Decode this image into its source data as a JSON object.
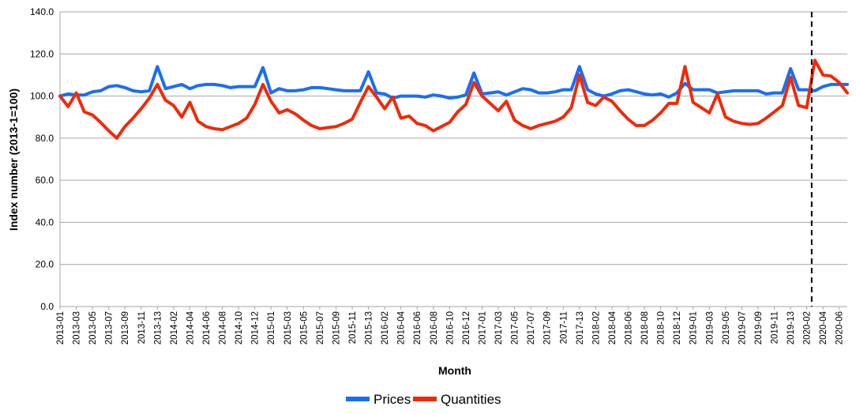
{
  "chart_data": {
    "type": "line",
    "xlabel": "Month",
    "ylabel": "Index number (2013-1=100)",
    "ylim": [
      0,
      140
    ],
    "yticks": [
      "0.0",
      "20.0",
      "40.0",
      "60.0",
      "80.0",
      "100.0",
      "120.0",
      "140.0"
    ],
    "grid": "horizontal",
    "legend_position": "bottom",
    "x": [
      "2013-01",
      "2013-02",
      "2013-03",
      "2013-04",
      "2013-05",
      "2013-06",
      "2013-07",
      "2013-08",
      "2013-09",
      "2013-10",
      "2013-11",
      "2013-12",
      "2013-13",
      "2014-01",
      "2014-02",
      "2014-03",
      "2014-04",
      "2014-05",
      "2014-06",
      "2014-07",
      "2014-08",
      "2014-09",
      "2014-10",
      "2014-11",
      "2014-12",
      "2014-13",
      "2015-01",
      "2015-02",
      "2015-03",
      "2015-04",
      "2015-05",
      "2015-06",
      "2015-07",
      "2015-08",
      "2015-09",
      "2015-10",
      "2015-11",
      "2015-12",
      "2015-13",
      "2016-01",
      "2016-02",
      "2016-03",
      "2016-04",
      "2016-05",
      "2016-06",
      "2016-07",
      "2016-08",
      "2016-09",
      "2016-10",
      "2016-11",
      "2016-12",
      "2016-13",
      "2017-01",
      "2017-02",
      "2017-03",
      "2017-04",
      "2017-05",
      "2017-06",
      "2017-07",
      "2017-08",
      "2017-09",
      "2017-10",
      "2017-11",
      "2017-12",
      "2017-13",
      "2018-01",
      "2018-02",
      "2018-03",
      "2018-04",
      "2018-05",
      "2018-06",
      "2018-07",
      "2018-08",
      "2018-09",
      "2018-10",
      "2018-11",
      "2018-12",
      "2018-13",
      "2019-01",
      "2019-02",
      "2019-03",
      "2019-04",
      "2019-05",
      "2019-06",
      "2019-07",
      "2019-08",
      "2019-09",
      "2019-10",
      "2019-11",
      "2019-12",
      "2019-13",
      "2020-01",
      "2020-02",
      "2020-03",
      "2020-04",
      "2020-05",
      "2020-06",
      "2020-07"
    ],
    "xtick_labels": [
      "2013-01",
      "2013-03",
      "2013-05",
      "2013-07",
      "2013-09",
      "2013-11",
      "2013-13",
      "2014-02",
      "2014-04",
      "2014-06",
      "2014-08",
      "2014-10",
      "2014-12",
      "2015-01",
      "2015-03",
      "2015-05",
      "2015-07",
      "2015-09",
      "2015-11",
      "2015-13",
      "2016-02",
      "2016-04",
      "2016-06",
      "2016-08",
      "2016-10",
      "2016-12",
      "2017-01",
      "2017-03",
      "2017-05",
      "2017-07",
      "2017-09",
      "2017-11",
      "2017-13",
      "2018-02",
      "2018-04",
      "2018-06",
      "2018-08",
      "2018-10",
      "2018-12",
      "2019-01",
      "2019-03",
      "2019-05",
      "2019-07",
      "2019-09",
      "2019-11",
      "2019-13",
      "2020-02",
      "2020-04",
      "2020-06"
    ],
    "vline_at": "2020-03",
    "series": [
      {
        "name": "Prices",
        "color": "#1a6ef5",
        "values": [
          100.0,
          101.0,
          100.5,
          100.5,
          102.0,
          102.5,
          104.5,
          105.0,
          104.0,
          102.5,
          102.0,
          102.5,
          114.0,
          103.5,
          104.5,
          105.5,
          103.5,
          105.0,
          105.5,
          105.5,
          105.0,
          104.0,
          104.5,
          104.5,
          104.5,
          113.5,
          101.5,
          103.5,
          102.5,
          102.5,
          103.0,
          104.0,
          104.0,
          103.5,
          103.0,
          102.5,
          102.5,
          102.5,
          111.5,
          101.5,
          101.0,
          99.0,
          100.0,
          100.0,
          100.0,
          99.5,
          100.5,
          100.0,
          99.0,
          99.5,
          100.5,
          111.0,
          101.0,
          101.5,
          102.0,
          100.5,
          102.0,
          103.5,
          103.0,
          101.5,
          101.5,
          102.0,
          103.0,
          103.0,
          114.0,
          103.0,
          101.0,
          100.0,
          101.0,
          102.5,
          103.0,
          102.0,
          101.0,
          100.5,
          101.0,
          99.5,
          101.5,
          106.0,
          103.0,
          103.0,
          103.0,
          101.5,
          102.0,
          102.5,
          102.5,
          102.5,
          102.5,
          101.0,
          101.5,
          101.5,
          113.0,
          103.0,
          103.0,
          102.5,
          104.5,
          105.5,
          105.5,
          105.5
        ]
      },
      {
        "name": "Quantities",
        "color": "#f02a0a",
        "values": [
          100.0,
          95.0,
          101.5,
          92.5,
          91.0,
          87.5,
          83.5,
          80.0,
          85.5,
          89.5,
          94.0,
          99.0,
          105.5,
          98.0,
          95.5,
          90.0,
          97.0,
          88.0,
          85.5,
          84.5,
          84.0,
          85.5,
          87.0,
          89.5,
          96.0,
          105.5,
          97.5,
          92.0,
          93.5,
          91.5,
          88.5,
          86.0,
          84.5,
          85.0,
          85.5,
          87.0,
          89.0,
          97.0,
          104.5,
          99.5,
          94.0,
          99.5,
          89.5,
          90.5,
          87.0,
          86.0,
          83.5,
          85.5,
          87.5,
          92.5,
          96.0,
          106.5,
          100.0,
          96.5,
          93.0,
          97.5,
          88.5,
          86.0,
          84.5,
          86.0,
          87.0,
          88.0,
          90.0,
          94.5,
          110.0,
          97.0,
          95.5,
          99.5,
          97.5,
          93.0,
          89.0,
          86.0,
          86.0,
          88.5,
          92.0,
          96.5,
          96.5,
          114.0,
          97.0,
          94.5,
          92.0,
          101.0,
          90.0,
          88.0,
          87.0,
          86.5,
          87.0,
          89.5,
          92.5,
          95.5,
          109.0,
          95.5,
          94.5,
          117.0,
          110.0,
          109.5,
          106.5,
          101.5
        ]
      }
    ]
  }
}
